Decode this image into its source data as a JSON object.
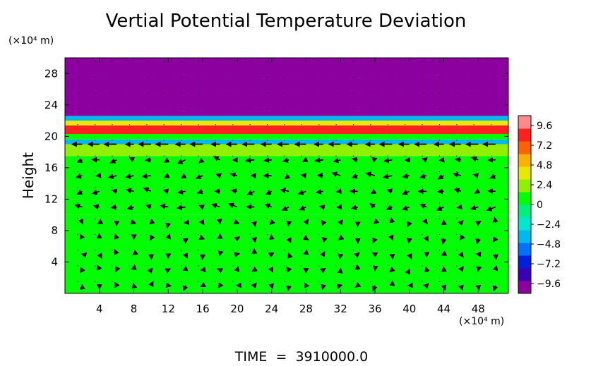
{
  "chart_data": {
    "type": "heatmap",
    "title": "Vertial Potential Temperature Deviation",
    "ylabel": "Height",
    "y_unit_label": "(×10⁴ m)",
    "x_unit_label": "(×10⁴ m)",
    "footer": "TIME  =  3910000.0",
    "xlim": [
      0,
      51.5
    ],
    "ylim": [
      0,
      30
    ],
    "x_ticks": [
      4,
      8,
      12,
      16,
      20,
      24,
      28,
      32,
      36,
      40,
      44,
      48
    ],
    "y_ticks": [
      4,
      8,
      12,
      16,
      20,
      24,
      28
    ],
    "colorbar": {
      "min": -10.8,
      "max": 10.8,
      "ticks": [
        "9.6",
        "7.2",
        "4.8",
        "2.4",
        "0",
        "−2.4",
        "−4.8",
        "−7.2",
        "−9.6"
      ],
      "colors": [
        "#8c00a0",
        "#3a00b8",
        "#0020e0",
        "#0070ff",
        "#00b8f0",
        "#00e8d0",
        "#00f080",
        "#00ff00",
        "#90f000",
        "#e8e800",
        "#ffb000",
        "#ff6000",
        "#ff2020",
        "#ff8a8a"
      ]
    },
    "field_bands": [
      {
        "y": [
          0,
          10
        ],
        "value": 0.1
      },
      {
        "y": [
          10,
          17.5
        ],
        "value": 0.9
      },
      {
        "y": [
          17.5,
          19
        ],
        "value": 1.6
      },
      {
        "y": [
          19,
          19.6
        ],
        "value": -3.2
      },
      {
        "y": [
          19.6,
          20.3
        ],
        "value": 1.2
      },
      {
        "y": [
          20.3,
          21.4
        ],
        "value": 9.0
      },
      {
        "y": [
          21.4,
          22.0
        ],
        "value": 3.8
      },
      {
        "y": [
          22.0,
          22.6
        ],
        "value": -3.5
      },
      {
        "y": [
          22.6,
          30
        ],
        "value": -10.8
      }
    ]
  }
}
